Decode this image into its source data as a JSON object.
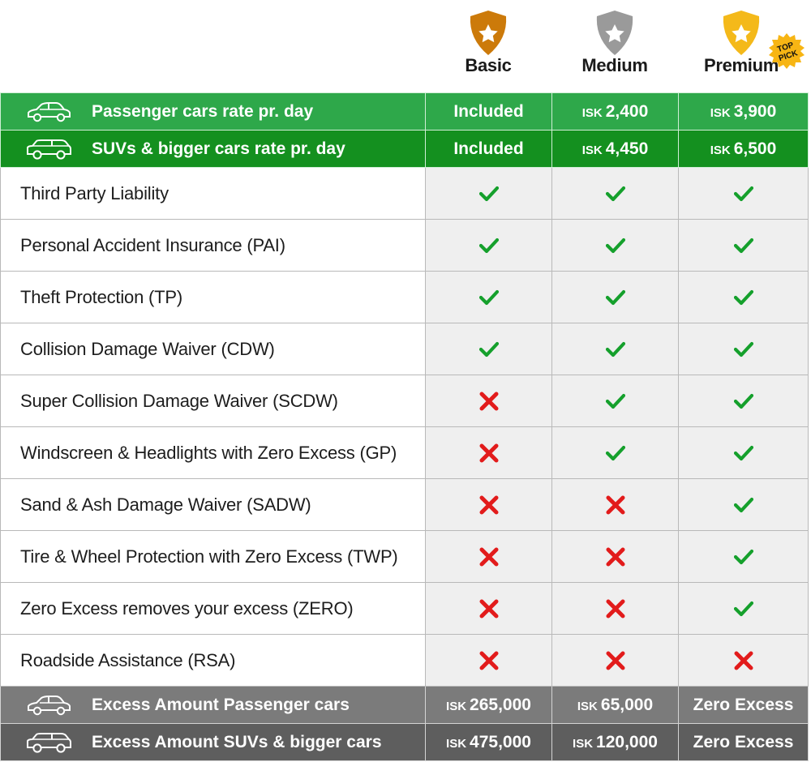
{
  "plans": [
    {
      "name": "Basic",
      "icon": "star-shield-icon",
      "color": "#cc7a0a"
    },
    {
      "name": "Medium",
      "icon": "star-shield-icon",
      "color": "#9a9a9a"
    },
    {
      "name": "Premium",
      "icon": "star-shield-icon",
      "color": "#f4b91a"
    }
  ],
  "top_pick": {
    "line1": "TOP",
    "line2": "PICK"
  },
  "rates": [
    {
      "label": "Passenger cars rate pr. day",
      "icon": "sedan-icon",
      "basic": "Included",
      "medium_cur": "ISK",
      "medium": "2,400",
      "premium_cur": "ISK",
      "premium": "3,900"
    },
    {
      "label": "SUVs & bigger cars rate pr. day",
      "icon": "suv-icon",
      "basic": "Included",
      "medium_cur": "ISK",
      "medium": "4,450",
      "premium_cur": "ISK",
      "premium": "6,500"
    }
  ],
  "features": [
    {
      "label": "Third Party Liability",
      "basic": true,
      "medium": true,
      "premium": true
    },
    {
      "label": "Personal Accident Insurance (PAI)",
      "basic": true,
      "medium": true,
      "premium": true
    },
    {
      "label": "Theft Protection (TP)",
      "basic": true,
      "medium": true,
      "premium": true
    },
    {
      "label": "Collision Damage Waiver (CDW)",
      "basic": true,
      "medium": true,
      "premium": true
    },
    {
      "label": "Super Collision Damage Waiver (SCDW)",
      "basic": false,
      "medium": true,
      "premium": true
    },
    {
      "label": "Windscreen & Headlights with Zero Excess (GP)",
      "basic": false,
      "medium": true,
      "premium": true
    },
    {
      "label": "Sand & Ash Damage Waiver (SADW)",
      "basic": false,
      "medium": false,
      "premium": true
    },
    {
      "label": "Tire & Wheel Protection with Zero Excess (TWP)",
      "basic": false,
      "medium": false,
      "premium": true
    },
    {
      "label": "Zero Excess removes your excess (ZERO)",
      "basic": false,
      "medium": false,
      "premium": true
    },
    {
      "label": "Roadside Assistance (RSA)",
      "basic": false,
      "medium": false,
      "premium": false
    }
  ],
  "excess": [
    {
      "label": "Excess Amount Passenger cars",
      "icon": "sedan-icon",
      "basic_cur": "ISK",
      "basic": "265,000",
      "medium_cur": "ISK",
      "medium": "65,000",
      "premium": "Zero Excess"
    },
    {
      "label": "Excess Amount SUVs & bigger cars",
      "icon": "suv-icon",
      "basic_cur": "ISK",
      "basic": "475,000",
      "medium_cur": "ISK",
      "medium": "120,000",
      "premium": "Zero Excess"
    }
  ],
  "colors": {
    "check": "#15a02c",
    "cross": "#e21b1b",
    "green": "#2ea84a",
    "dark_green": "#14901f",
    "grey": "#7b7b7b",
    "dark_grey": "#5e5e5e"
  }
}
